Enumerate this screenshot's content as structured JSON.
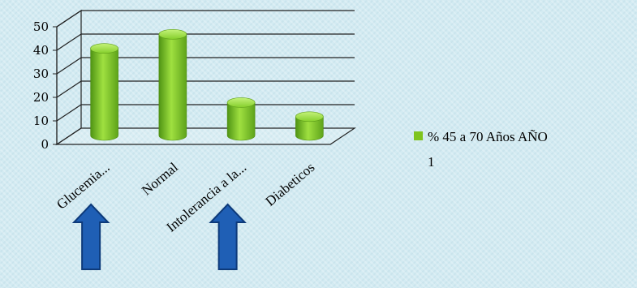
{
  "chart_data": {
    "type": "bar",
    "categories": [
      "Glucemia...",
      "Normal",
      "Intolerancia a la...",
      "Diabeticos"
    ],
    "series": [
      {
        "name": "% 45 a 70 Años AÑO 1",
        "values": [
          37,
          43,
          14,
          8
        ]
      }
    ],
    "yticks": [
      "0",
      "10",
      "20",
      "30",
      "40",
      "50"
    ],
    "ylim": [
      0,
      50
    ],
    "grid": true,
    "legend_position": "right",
    "bar_color": "#7fc41e"
  },
  "legend": {
    "line1": "% 45 a 70 Años AÑO",
    "line2": "1"
  },
  "annotations": {
    "arrow_color": "#1f5fb5",
    "arrow_categories": [
      "Glucemia...",
      "Intolerancia a la..."
    ]
  }
}
